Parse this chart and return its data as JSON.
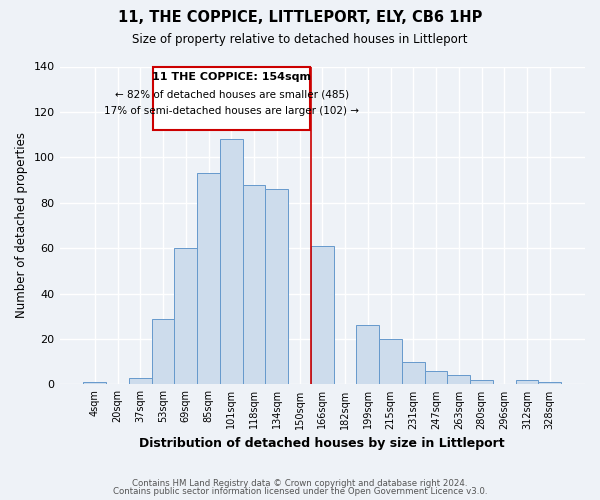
{
  "title": "11, THE COPPICE, LITTLEPORT, ELY, CB6 1HP",
  "subtitle": "Size of property relative to detached houses in Littleport",
  "xlabel": "Distribution of detached houses by size in Littleport",
  "ylabel": "Number of detached properties",
  "bar_labels": [
    "4sqm",
    "20sqm",
    "37sqm",
    "53sqm",
    "69sqm",
    "85sqm",
    "101sqm",
    "118sqm",
    "134sqm",
    "150sqm",
    "166sqm",
    "182sqm",
    "199sqm",
    "215sqm",
    "231sqm",
    "247sqm",
    "263sqm",
    "280sqm",
    "296sqm",
    "312sqm",
    "328sqm"
  ],
  "bar_heights": [
    1,
    0,
    3,
    29,
    60,
    93,
    108,
    88,
    86,
    0,
    61,
    0,
    26,
    20,
    10,
    6,
    4,
    2,
    0,
    2,
    1
  ],
  "bar_color": "#cddcec",
  "bar_edge_color": "#6699cc",
  "annotation_title": "11 THE COPPICE: 154sqm",
  "annotation_line1": "← 82% of detached houses are smaller (485)",
  "annotation_line2": "17% of semi-detached houses are larger (102) →",
  "vline_color": "#cc0000",
  "box_edge_color": "#cc0000",
  "ylim": [
    0,
    140
  ],
  "yticks": [
    0,
    20,
    40,
    60,
    80,
    100,
    120,
    140
  ],
  "footer1": "Contains HM Land Registry data © Crown copyright and database right 2024.",
  "footer2": "Contains public sector information licensed under the Open Government Licence v3.0.",
  "background_color": "#eef2f7",
  "grid_color": "#ffffff"
}
